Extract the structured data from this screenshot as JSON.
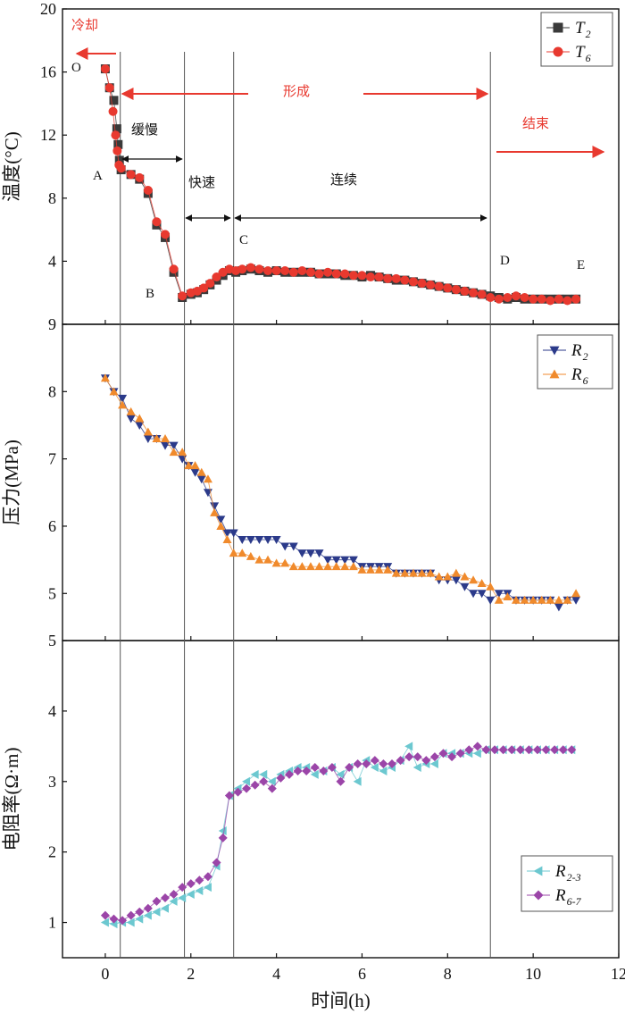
{
  "chart_data": [
    {
      "type": "line",
      "panel": "temperature",
      "ylabel": "温度(°C)",
      "xlim": [
        -1,
        12
      ],
      "ylim": [
        0,
        20
      ],
      "yticks": [
        0,
        4,
        8,
        12,
        16,
        20
      ],
      "yticks_shown": [
        "",
        "4",
        "8",
        "12",
        "16",
        "20"
      ],
      "phase_lines": [
        0.35,
        1.85,
        3.0,
        9.0
      ],
      "series": [
        {
          "name": "T2",
          "label_main": "T",
          "label_sub": "2",
          "color": "#3a3a3a",
          "marker": "square",
          "x": [
            0,
            0.1,
            0.2,
            0.27,
            0.3,
            0.33,
            0.37,
            0.6,
            0.8,
            1.0,
            1.2,
            1.4,
            1.6,
            1.8,
            2.0,
            2.15,
            2.3,
            2.45,
            2.6,
            2.75,
            2.9,
            3.05,
            3.2,
            3.4,
            3.6,
            3.8,
            4.0,
            4.2,
            4.4,
            4.6,
            4.8,
            5.0,
            5.2,
            5.4,
            5.6,
            5.8,
            6.0,
            6.2,
            6.4,
            6.6,
            6.8,
            7.0,
            7.2,
            7.4,
            7.6,
            7.8,
            8.0,
            8.2,
            8.4,
            8.6,
            8.8,
            9.0,
            9.2,
            9.4,
            9.6,
            9.8,
            10.0,
            10.2,
            10.4,
            10.6,
            10.8,
            11.0
          ],
          "y": [
            16.2,
            15.0,
            14.2,
            12.4,
            11.4,
            10.4,
            9.8,
            9.5,
            9.2,
            8.3,
            6.3,
            5.5,
            3.3,
            1.7,
            1.9,
            2.0,
            2.2,
            2.5,
            2.8,
            3.1,
            3.4,
            3.3,
            3.4,
            3.5,
            3.4,
            3.3,
            3.4,
            3.3,
            3.3,
            3.3,
            3.3,
            3.2,
            3.2,
            3.2,
            3.1,
            3.1,
            3.0,
            3.1,
            3.0,
            2.9,
            2.8,
            2.8,
            2.7,
            2.6,
            2.5,
            2.4,
            2.3,
            2.2,
            2.1,
            2.0,
            1.9,
            1.8,
            1.7,
            1.6,
            1.7,
            1.6,
            1.6,
            1.6,
            1.6,
            1.6,
            1.6,
            1.6
          ]
        },
        {
          "name": "T6",
          "label_main": "T",
          "label_sub": "6",
          "color": "#e8392f",
          "marker": "circle",
          "x": [
            0,
            0.1,
            0.18,
            0.24,
            0.28,
            0.32,
            0.37,
            0.6,
            0.8,
            1.0,
            1.2,
            1.4,
            1.6,
            1.8,
            2.0,
            2.15,
            2.3,
            2.45,
            2.6,
            2.75,
            2.9,
            3.05,
            3.2,
            3.4,
            3.6,
            3.8,
            4.0,
            4.2,
            4.4,
            4.6,
            4.8,
            5.0,
            5.2,
            5.4,
            5.6,
            5.8,
            6.0,
            6.2,
            6.4,
            6.6,
            6.8,
            7.0,
            7.2,
            7.4,
            7.6,
            7.8,
            8.0,
            8.2,
            8.4,
            8.6,
            8.8,
            9.0,
            9.2,
            9.4,
            9.6,
            9.8,
            10.0,
            10.2,
            10.4,
            10.6,
            10.8,
            11.0
          ],
          "y": [
            16.2,
            15.0,
            13.5,
            12.0,
            11.0,
            10.1,
            9.9,
            9.5,
            9.3,
            8.5,
            6.5,
            5.7,
            3.5,
            1.8,
            2.0,
            2.1,
            2.3,
            2.6,
            3.0,
            3.3,
            3.5,
            3.4,
            3.5,
            3.6,
            3.5,
            3.4,
            3.4,
            3.4,
            3.3,
            3.4,
            3.3,
            3.2,
            3.3,
            3.2,
            3.2,
            3.1,
            3.1,
            3.0,
            3.0,
            2.9,
            2.9,
            2.8,
            2.7,
            2.6,
            2.5,
            2.4,
            2.3,
            2.2,
            2.1,
            2.0,
            1.9,
            1.7,
            1.6,
            1.7,
            1.8,
            1.7,
            1.6,
            1.6,
            1.5,
            1.6,
            1.5,
            1.6
          ]
        }
      ],
      "annotations": {
        "o": "O",
        "a": "A",
        "b": "B",
        "c": "C",
        "d": "D",
        "e": "E",
        "cooling": "冷却",
        "forming": "形成",
        "ending": "结束",
        "slow": "缓慢",
        "fast": "快速",
        "continuous": "连续"
      }
    },
    {
      "type": "line",
      "panel": "pressure",
      "ylabel": "压力(MPa)",
      "xlim": [
        -1,
        12
      ],
      "ylim": [
        4.3,
        9
      ],
      "yticks": [
        5,
        6,
        7,
        8,
        9
      ],
      "series": [
        {
          "name": "R2",
          "label_main": "R",
          "label_sub": "2",
          "color": "#2b3a8a",
          "marker": "triangle-down",
          "x": [
            0,
            0.2,
            0.4,
            0.6,
            0.8,
            1.0,
            1.2,
            1.4,
            1.6,
            1.8,
            1.95,
            2.1,
            2.25,
            2.4,
            2.55,
            2.7,
            2.85,
            3.0,
            3.2,
            3.4,
            3.6,
            3.8,
            4.0,
            4.2,
            4.4,
            4.6,
            4.8,
            5.0,
            5.2,
            5.4,
            5.6,
            5.8,
            6.0,
            6.2,
            6.4,
            6.6,
            6.8,
            7.0,
            7.2,
            7.4,
            7.6,
            7.8,
            8.0,
            8.2,
            8.4,
            8.6,
            8.8,
            9.0,
            9.2,
            9.4,
            9.6,
            9.8,
            10.0,
            10.2,
            10.4,
            10.6,
            10.8,
            11.0
          ],
          "y": [
            8.2,
            8.0,
            7.9,
            7.6,
            7.5,
            7.3,
            7.3,
            7.2,
            7.2,
            7.0,
            6.9,
            6.8,
            6.7,
            6.5,
            6.3,
            6.1,
            5.9,
            5.9,
            5.8,
            5.8,
            5.8,
            5.8,
            5.8,
            5.7,
            5.7,
            5.6,
            5.6,
            5.6,
            5.5,
            5.5,
            5.5,
            5.5,
            5.4,
            5.4,
            5.4,
            5.4,
            5.3,
            5.3,
            5.3,
            5.3,
            5.3,
            5.2,
            5.2,
            5.2,
            5.1,
            5.0,
            5.0,
            4.9,
            5.0,
            5.0,
            4.9,
            4.9,
            4.9,
            4.9,
            4.9,
            4.8,
            4.9,
            4.9
          ]
        },
        {
          "name": "R6",
          "label_main": "R",
          "label_sub": "6",
          "color": "#f08a2c",
          "marker": "triangle-up",
          "x": [
            0,
            0.2,
            0.4,
            0.6,
            0.8,
            1.0,
            1.2,
            1.4,
            1.6,
            1.8,
            1.95,
            2.1,
            2.25,
            2.4,
            2.55,
            2.7,
            2.85,
            3.0,
            3.2,
            3.4,
            3.6,
            3.8,
            4.0,
            4.2,
            4.4,
            4.6,
            4.8,
            5.0,
            5.2,
            5.4,
            5.6,
            5.8,
            6.0,
            6.2,
            6.4,
            6.6,
            6.8,
            7.0,
            7.2,
            7.4,
            7.6,
            7.8,
            8.0,
            8.2,
            8.4,
            8.6,
            8.8,
            9.0,
            9.2,
            9.4,
            9.6,
            9.8,
            10.0,
            10.2,
            10.4,
            10.6,
            10.8,
            11.0
          ],
          "y": [
            8.2,
            8.0,
            7.8,
            7.7,
            7.6,
            7.4,
            7.3,
            7.3,
            7.1,
            7.1,
            6.9,
            6.9,
            6.8,
            6.7,
            6.2,
            6.0,
            5.8,
            5.6,
            5.6,
            5.55,
            5.5,
            5.5,
            5.45,
            5.45,
            5.4,
            5.4,
            5.4,
            5.4,
            5.4,
            5.4,
            5.4,
            5.4,
            5.35,
            5.35,
            5.35,
            5.35,
            5.3,
            5.3,
            5.3,
            5.3,
            5.3,
            5.25,
            5.25,
            5.3,
            5.25,
            5.2,
            5.15,
            5.1,
            4.9,
            4.95,
            4.9,
            4.9,
            4.9,
            4.9,
            4.9,
            4.9,
            4.9,
            5.0
          ]
        }
      ]
    },
    {
      "type": "line",
      "panel": "resistivity",
      "ylabel": "电阻率(Ω·m)",
      "xlabel": "时间(h)",
      "xlim": [
        -1,
        12
      ],
      "ylim": [
        0.5,
        5
      ],
      "xticks": [
        0,
        2,
        4,
        6,
        8,
        10,
        12
      ],
      "yticks": [
        1,
        2,
        3,
        4,
        5
      ],
      "series": [
        {
          "name": "R2-3",
          "label_main": "R",
          "label_sub": "2-3",
          "color": "#6cc8d0",
          "marker": "triangle-left",
          "x": [
            0,
            0.2,
            0.4,
            0.6,
            0.8,
            1.0,
            1.2,
            1.4,
            1.6,
            1.8,
            2.0,
            2.2,
            2.4,
            2.6,
            2.75,
            2.9,
            3.1,
            3.3,
            3.5,
            3.7,
            3.9,
            4.1,
            4.3,
            4.5,
            4.7,
            4.9,
            5.1,
            5.3,
            5.5,
            5.7,
            5.9,
            6.1,
            6.3,
            6.5,
            6.7,
            6.9,
            7.1,
            7.3,
            7.5,
            7.7,
            7.9,
            8.1,
            8.3,
            8.5,
            8.7,
            8.9,
            9.1,
            9.3,
            9.5,
            9.7,
            9.9,
            10.1,
            10.3,
            10.5,
            10.7,
            10.9
          ],
          "y": [
            1.0,
            0.98,
            1.0,
            1.0,
            1.05,
            1.1,
            1.15,
            1.2,
            1.3,
            1.35,
            1.4,
            1.45,
            1.5,
            1.8,
            2.3,
            2.8,
            2.9,
            3.0,
            3.1,
            3.1,
            3.0,
            3.1,
            3.15,
            3.2,
            3.2,
            3.1,
            3.15,
            3.2,
            3.1,
            3.2,
            3.0,
            3.3,
            3.2,
            3.15,
            3.2,
            3.3,
            3.5,
            3.2,
            3.25,
            3.25,
            3.4,
            3.4,
            3.4,
            3.4,
            3.4,
            3.45,
            3.45,
            3.45,
            3.45,
            3.45,
            3.45,
            3.45,
            3.45,
            3.45,
            3.45,
            3.45
          ]
        },
        {
          "name": "R6-7",
          "label_main": "R",
          "label_sub": "6-7",
          "color": "#9b45a8",
          "marker": "diamond",
          "x": [
            0,
            0.2,
            0.4,
            0.6,
            0.8,
            1.0,
            1.2,
            1.4,
            1.6,
            1.8,
            2.0,
            2.2,
            2.4,
            2.6,
            2.75,
            2.9,
            3.1,
            3.3,
            3.5,
            3.7,
            3.9,
            4.1,
            4.3,
            4.5,
            4.7,
            4.9,
            5.1,
            5.3,
            5.5,
            5.7,
            5.9,
            6.1,
            6.3,
            6.5,
            6.7,
            6.9,
            7.1,
            7.3,
            7.5,
            7.7,
            7.9,
            8.1,
            8.3,
            8.5,
            8.7,
            8.9,
            9.1,
            9.3,
            9.5,
            9.7,
            9.9,
            10.1,
            10.3,
            10.5,
            10.7,
            10.9
          ],
          "y": [
            1.1,
            1.05,
            1.03,
            1.1,
            1.15,
            1.2,
            1.3,
            1.35,
            1.4,
            1.5,
            1.55,
            1.6,
            1.65,
            1.85,
            2.2,
            2.8,
            2.85,
            2.9,
            2.95,
            3.0,
            2.9,
            3.05,
            3.1,
            3.15,
            3.15,
            3.2,
            3.15,
            3.2,
            3.0,
            3.2,
            3.25,
            3.25,
            3.3,
            3.25,
            3.25,
            3.3,
            3.35,
            3.35,
            3.3,
            3.35,
            3.4,
            3.35,
            3.4,
            3.45,
            3.5,
            3.45,
            3.45,
            3.45,
            3.45,
            3.45,
            3.45,
            3.45,
            3.45,
            3.45,
            3.45,
            3.45
          ]
        }
      ]
    }
  ]
}
